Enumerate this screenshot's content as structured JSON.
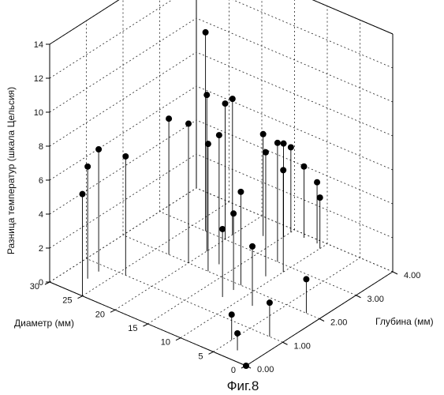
{
  "caption": "Фиг.8",
  "chart_data": {
    "type": "scatter",
    "subtype": "3d-stem",
    "title": "",
    "zlabel": "Разница температур (шкала Цельсия)",
    "xlabel": "Глубина (мм)",
    "ylabel": "Диаметр (мм)",
    "x_range": [
      0,
      4
    ],
    "y_range": [
      0,
      30
    ],
    "z_range": [
      0,
      14
    ],
    "x_ticks": [
      "0.00",
      "1.00",
      "2.00",
      "3.00",
      "4.00"
    ],
    "y_ticks": [
      "0",
      "5",
      "10",
      "15",
      "20",
      "25",
      "30"
    ],
    "z_ticks": [
      "0",
      "2",
      "4",
      "6",
      "8",
      "10",
      "12",
      "14"
    ],
    "grid": true,
    "points": [
      {
        "x": 0.0,
        "y": 0,
        "z": 0.0
      },
      {
        "x": 0.0,
        "y": 25,
        "z": 6.0
      },
      {
        "x": 0.5,
        "y": 27,
        "z": 6.6
      },
      {
        "x": 0.8,
        "y": 27,
        "z": 7.2
      },
      {
        "x": 1.0,
        "y": 24,
        "z": 7.0
      },
      {
        "x": 2.0,
        "y": 23,
        "z": 8.0
      },
      {
        "x": 2.0,
        "y": 20,
        "z": 8.2
      },
      {
        "x": 2.0,
        "y": 17,
        "z": 7.5
      },
      {
        "x": 2.3,
        "y": 17,
        "z": 7.6
      },
      {
        "x": 2.5,
        "y": 20,
        "z": 9.2
      },
      {
        "x": 3.0,
        "y": 20,
        "z": 8.0
      },
      {
        "x": 3.0,
        "y": 23,
        "z": 11.7
      },
      {
        "x": 3.2,
        "y": 20,
        "z": 8.0
      },
      {
        "x": 3.5,
        "y": 17,
        "z": 6.0
      },
      {
        "x": 3.7,
        "y": 15,
        "z": 5.5
      },
      {
        "x": 3.9,
        "y": 15,
        "z": 5.0
      },
      {
        "x": 3.9,
        "y": 13,
        "z": 4.2
      },
      {
        "x": 3.9,
        "y": 11,
        "z": 3.6
      },
      {
        "x": 3.0,
        "y": 12,
        "z": 7.0
      },
      {
        "x": 2.5,
        "y": 11,
        "z": 7.3
      },
      {
        "x": 2.8,
        "y": 10,
        "z": 6.0
      },
      {
        "x": 2.0,
        "y": 12,
        "z": 5.5
      },
      {
        "x": 1.8,
        "y": 12,
        "z": 4.5
      },
      {
        "x": 1.5,
        "y": 12,
        "z": 4.0
      },
      {
        "x": 1.6,
        "y": 8,
        "z": 3.5
      },
      {
        "x": 3.8,
        "y": 10,
        "z": 3.0
      },
      {
        "x": 2.0,
        "y": 2,
        "z": 2.0
      },
      {
        "x": 1.0,
        "y": 2,
        "z": 2.0
      },
      {
        "x": 0.5,
        "y": 5,
        "z": 1.5
      },
      {
        "x": 0.3,
        "y": 3,
        "z": 1.0
      }
    ]
  }
}
